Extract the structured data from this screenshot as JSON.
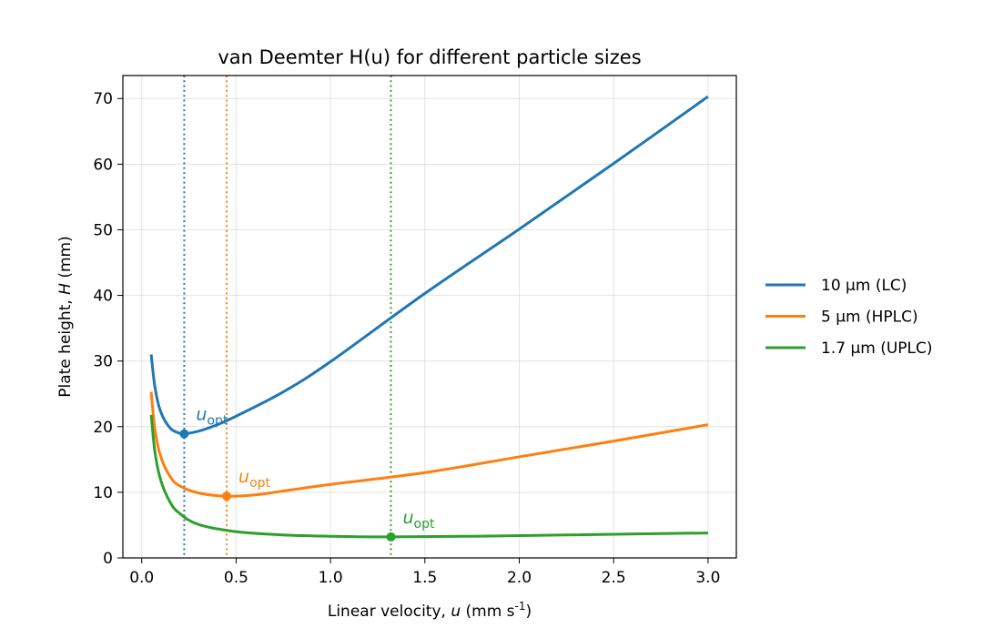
{
  "chart_data": {
    "type": "line",
    "title": "van Deemter H(u) for different particle sizes",
    "xlabel": "Linear velocity, u (mm s⁻¹)",
    "ylabel": "Plate height, H (mm)",
    "xlim": [
      -0.1,
      3.15
    ],
    "ylim": [
      0,
      73.5
    ],
    "xticks": [
      0.0,
      0.5,
      1.0,
      1.5,
      2.0,
      2.5,
      3.0
    ],
    "xtick_labels": [
      "0.0",
      "0.5",
      "1.0",
      "1.5",
      "2.0",
      "2.5",
      "3.0"
    ],
    "yticks": [
      0,
      10,
      20,
      30,
      40,
      50,
      60,
      70
    ],
    "ytick_labels": [
      "0",
      "10",
      "20",
      "30",
      "40",
      "50",
      "60",
      "70"
    ],
    "grid": true,
    "legend_position": "right-outside",
    "series": [
      {
        "name": "10 μm (LC)",
        "color": "#1f77b4",
        "x": [
          0.05,
          0.07,
          0.1,
          0.15,
          0.2,
          0.225,
          0.3,
          0.4,
          0.5,
          0.75,
          1.0,
          1.5,
          2.0,
          2.5,
          3.0
        ],
        "y": [
          31.0,
          26.0,
          22.3,
          19.8,
          19.0,
          18.9,
          19.3,
          20.3,
          21.6,
          25.3,
          29.9,
          40.3,
          50.1,
          60.1,
          70.3
        ],
        "u_opt": 0.225,
        "h_min": 18.9
      },
      {
        "name": "5 μm (HPLC)",
        "color": "#ff7f0e",
        "x": [
          0.05,
          0.07,
          0.1,
          0.15,
          0.2,
          0.3,
          0.45,
          0.6,
          0.8,
          1.0,
          1.5,
          2.0,
          2.5,
          3.0
        ],
        "y": [
          25.3,
          19.5,
          15.5,
          12.4,
          11.0,
          9.9,
          9.4,
          9.6,
          10.4,
          11.2,
          13.0,
          15.4,
          17.8,
          20.3
        ],
        "u_opt": 0.45,
        "h_min": 9.4
      },
      {
        "name": "1.7 μm (UPLC)",
        "color": "#2ca02c",
        "x": [
          0.05,
          0.07,
          0.1,
          0.15,
          0.2,
          0.3,
          0.5,
          0.75,
          1.0,
          1.32,
          1.75,
          2.25,
          3.0
        ],
        "y": [
          21.8,
          16.1,
          11.9,
          8.5,
          6.8,
          5.1,
          4.0,
          3.5,
          3.3,
          3.2,
          3.3,
          3.5,
          3.8
        ],
        "u_opt": 1.32,
        "h_min": 3.2
      }
    ],
    "annotations": [
      {
        "text": "u",
        "subscript": "opt",
        "series": 0
      },
      {
        "text": "u",
        "subscript": "opt",
        "series": 1
      },
      {
        "text": "u",
        "subscript": "opt",
        "series": 2
      }
    ]
  }
}
